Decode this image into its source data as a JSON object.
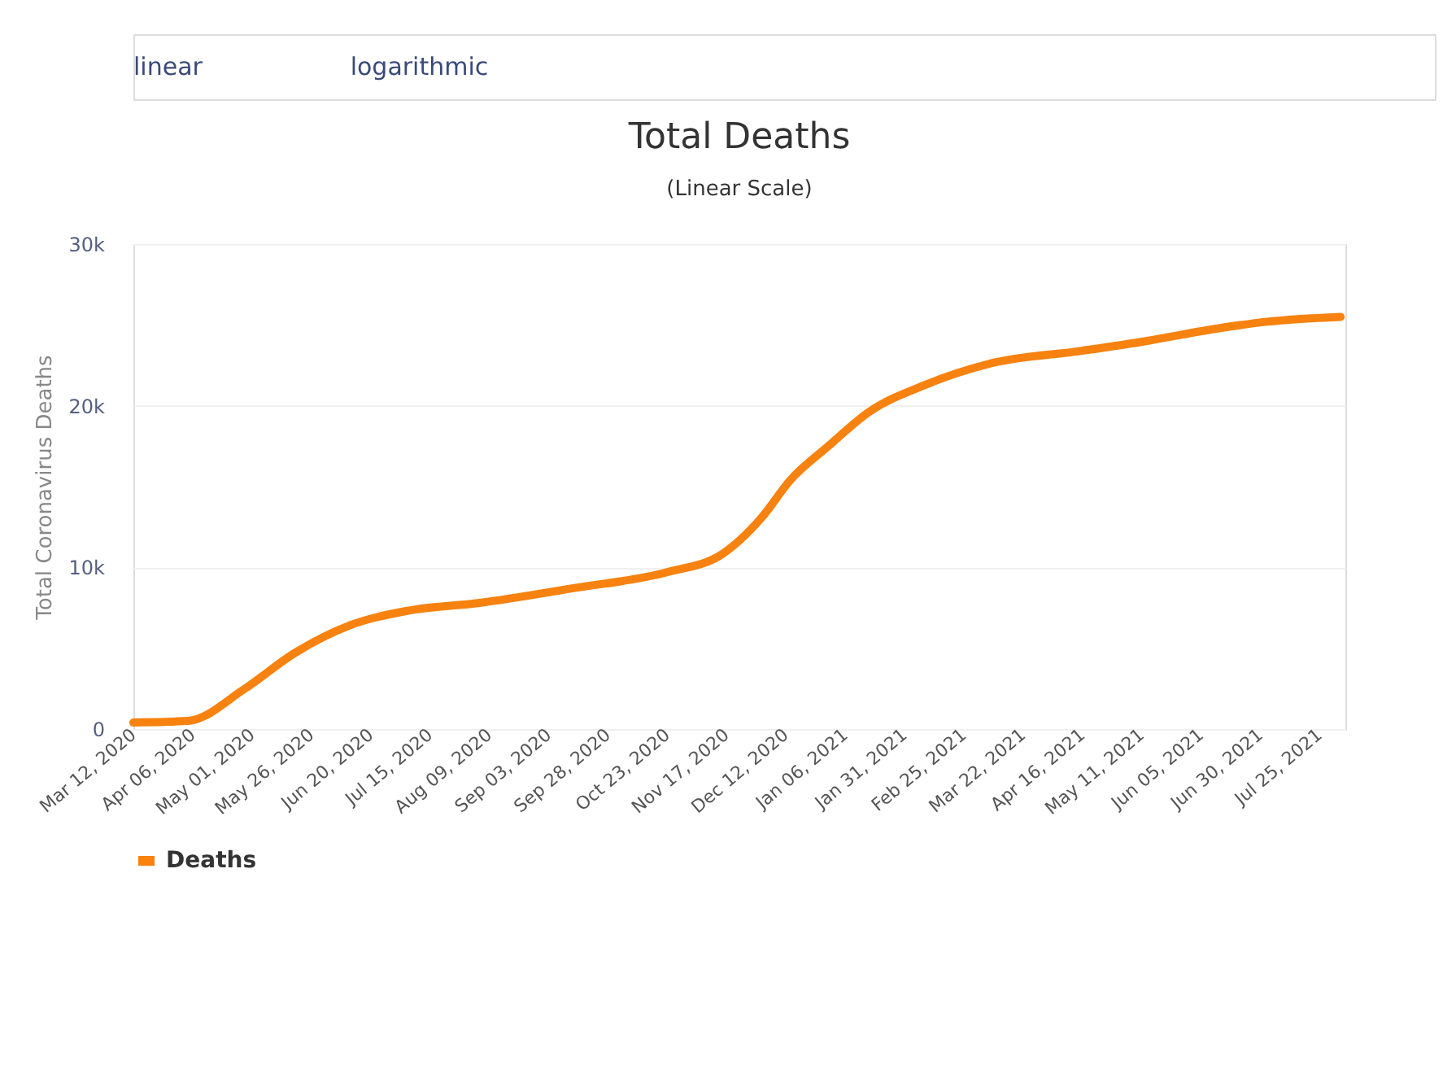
{
  "chart_data": {
    "type": "line",
    "title": "Total Deaths",
    "subtitle": "(Linear Scale)",
    "ylabel": "Total Coronavirus Deaths",
    "annotations": [
      "linear",
      "logarithmic"
    ],
    "x": [
      "2020-03-12",
      "2020-04-04",
      "2020-04-28",
      "2020-05-19",
      "2020-06-11",
      "2020-07-05",
      "2020-08-05",
      "2020-09-13",
      "2020-10-23",
      "2020-11-15",
      "2020-12-02",
      "2020-12-14",
      "2020-12-30",
      "2021-01-16",
      "2021-02-09",
      "2021-03-08",
      "2021-04-16",
      "2021-05-13",
      "2021-06-13",
      "2021-07-03",
      "2021-08-03"
    ],
    "series": [
      {
        "name": "Deaths",
        "color": "#f7820f",
        "values": [
          400,
          500,
          2500,
          4700,
          6400,
          7300,
          7800,
          8700,
          9700,
          10800,
          13100,
          15400,
          17500,
          19600,
          21300,
          22600,
          23400,
          24000,
          24800,
          25200,
          25500
        ]
      }
    ],
    "xlim": [
      "2020-03-12",
      "2021-08-05"
    ],
    "xticks": [
      {
        "value": "2020-03-12",
        "label": "Mar 12, 2020"
      },
      {
        "value": "2020-04-06",
        "label": "Apr 06, 2020"
      },
      {
        "value": "2020-05-01",
        "label": "May 01, 2020"
      },
      {
        "value": "2020-05-26",
        "label": "May 26, 2020"
      },
      {
        "value": "2020-06-20",
        "label": "Jun 20, 2020"
      },
      {
        "value": "2020-07-15",
        "label": "Jul 15, 2020"
      },
      {
        "value": "2020-08-09",
        "label": "Aug 09, 2020"
      },
      {
        "value": "2020-09-03",
        "label": "Sep 03, 2020"
      },
      {
        "value": "2020-09-28",
        "label": "Sep 28, 2020"
      },
      {
        "value": "2020-10-23",
        "label": "Oct 23, 2020"
      },
      {
        "value": "2020-11-17",
        "label": "Nov 17, 2020"
      },
      {
        "value": "2020-12-12",
        "label": "Dec 12, 2020"
      },
      {
        "value": "2021-01-06",
        "label": "Jan 06, 2021"
      },
      {
        "value": "2021-01-31",
        "label": "Jan 31, 2021"
      },
      {
        "value": "2021-02-25",
        "label": "Feb 25, 2021"
      },
      {
        "value": "2021-03-22",
        "label": "Mar 22, 2021"
      },
      {
        "value": "2021-04-16",
        "label": "Apr 16, 2021"
      },
      {
        "value": "2021-05-11",
        "label": "May 11, 2021"
      },
      {
        "value": "2021-06-05",
        "label": "Jun 05, 2021"
      },
      {
        "value": "2021-06-30",
        "label": "Jun 30, 2021"
      },
      {
        "value": "2021-07-25",
        "label": "Jul 25, 2021"
      }
    ],
    "ylim": [
      0,
      30000
    ],
    "yticks": [
      {
        "value": 0,
        "label": "0"
      },
      {
        "value": 10000,
        "label": "10k"
      },
      {
        "value": 20000,
        "label": "20k"
      },
      {
        "value": 30000,
        "label": "30k"
      }
    ],
    "grid": "y",
    "legend": "bottom",
    "marker": "none",
    "line_style": "solid"
  }
}
